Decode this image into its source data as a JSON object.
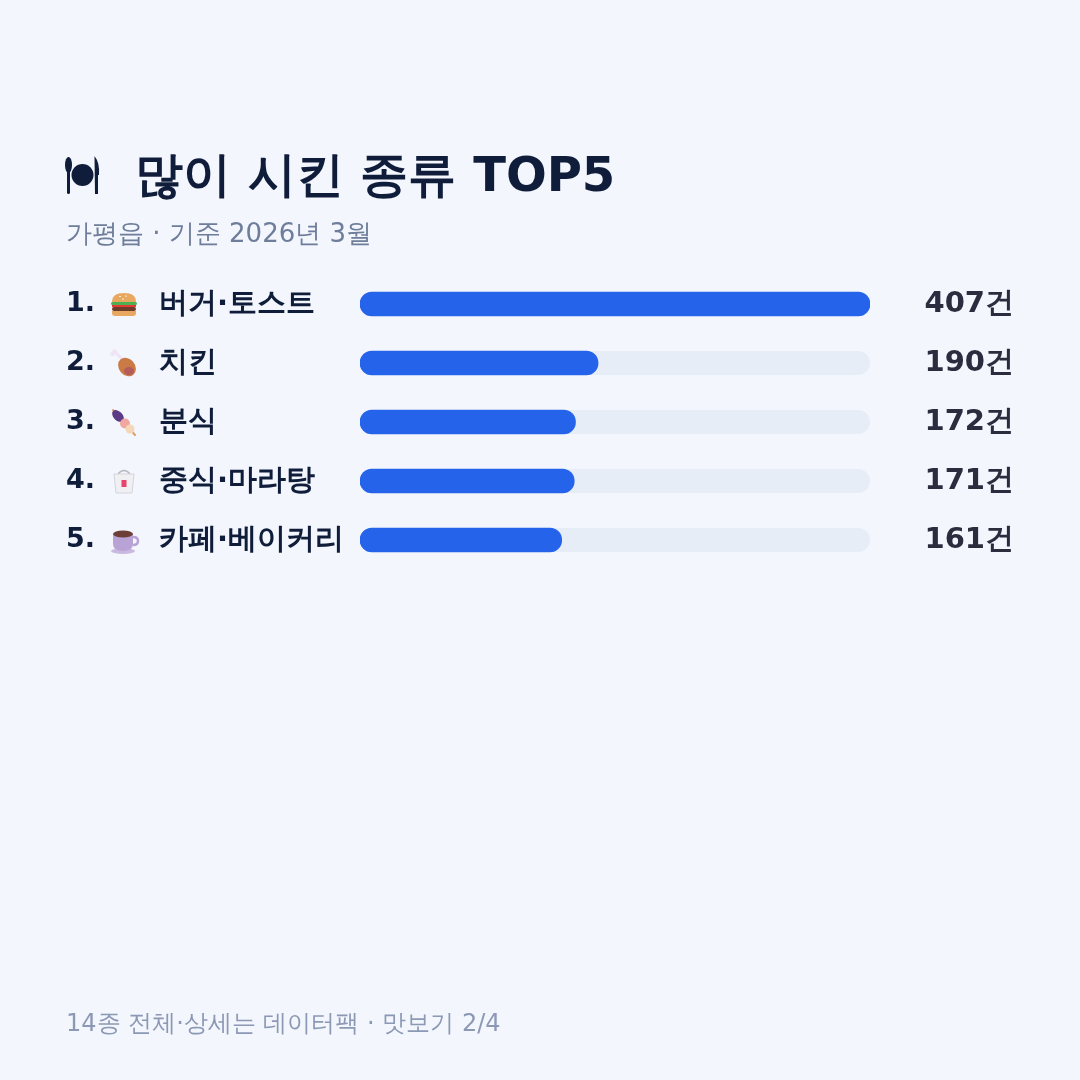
{
  "chart_data": {
    "type": "bar",
    "orientation": "horizontal",
    "title": "많이 시킨 종류 TOP5",
    "subtitle": "가평읍 · 기준 2026년 3월",
    "categories": [
      "1. 버거·토스트",
      "2. 치킨",
      "3. 분식",
      "4. 중식·마라탕",
      "5. 카페·베이커리"
    ],
    "values": [
      407,
      190,
      172,
      171,
      161
    ],
    "value_labels": [
      "407건",
      "190건",
      "172건",
      "171건",
      "161건"
    ],
    "color": "#2563eb",
    "xlim": [
      0,
      407
    ],
    "tick_labels": "y",
    "annotations": [
      "14종 전체·상세는 데이터팩 · 맛보기 2/4"
    ]
  }
}
